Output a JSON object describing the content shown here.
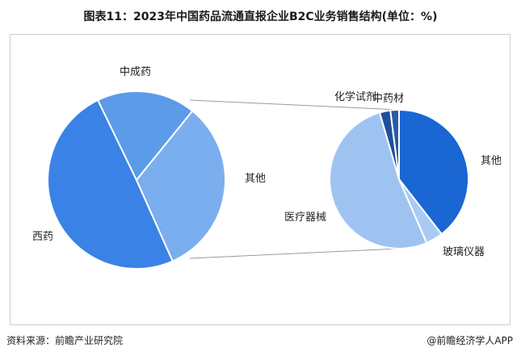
{
  "title": "图表11：2023年中国药品流通直报企业B2C业务销售结构(单位：%)",
  "footer": {
    "source": "资料来源：前瞻产业研究院",
    "credit": "@前瞻经济学人APP"
  },
  "watermark": "前瞻产业研究院",
  "chart_data": [
    {
      "type": "pie",
      "title": "",
      "categories": [
        "西药",
        "中成药",
        "其他"
      ],
      "values": [
        49.5,
        18.0,
        32.5
      ],
      "colors": [
        "#3b82e6",
        "#5b9be8",
        "#7baeee"
      ]
    },
    {
      "type": "pie",
      "title": "",
      "categories": [
        "其他",
        "玻璃仪器",
        "医疗器械",
        "化学试剂",
        "中药材"
      ],
      "values": [
        39.5,
        4.0,
        52.0,
        2.5,
        2.0
      ],
      "colors": [
        "#1a66d2",
        "#a8cbf3",
        "#9fc3f1",
        "#1f4f9a",
        "#2a5aa8"
      ]
    }
  ]
}
